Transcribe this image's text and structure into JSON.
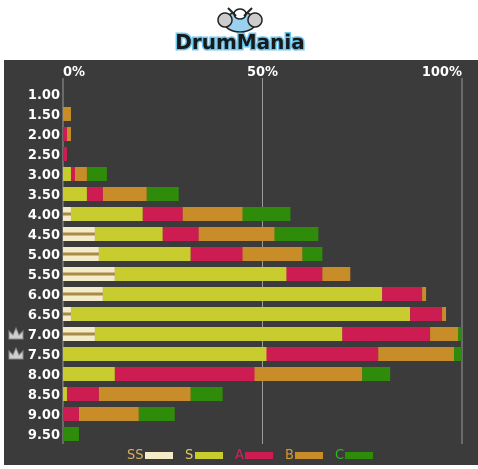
{
  "header": {
    "logo_text": "DrumMania"
  },
  "chart_data": {
    "type": "bar",
    "stacked": true,
    "orientation": "horizontal",
    "xlim": [
      0,
      100
    ],
    "x_tick_labels": [
      "0%",
      "50%",
      "100%"
    ],
    "categories": [
      "1.00",
      "1.50",
      "2.00",
      "2.50",
      "3.00",
      "3.50",
      "4.00",
      "4.50",
      "5.00",
      "5.50",
      "6.00",
      "6.50",
      "7.00",
      "7.50",
      "8.00",
      "8.50",
      "9.00",
      "9.50"
    ],
    "crowned_categories": [
      "7.00",
      "7.50"
    ],
    "series": [
      {
        "name": "SS",
        "color": "#f4ecc8",
        "values": [
          0,
          0,
          0,
          0,
          0,
          0,
          2,
          8,
          9,
          13,
          10,
          2,
          8,
          0,
          0,
          0,
          0,
          0
        ]
      },
      {
        "name": "S",
        "color": "#c8cc2e",
        "values": [
          0,
          0,
          0,
          0,
          2,
          6,
          18,
          17,
          23,
          43,
          70,
          85,
          62,
          51,
          13,
          1,
          0,
          0
        ]
      },
      {
        "name": "A",
        "color": "#cc1c52",
        "values": [
          0,
          0,
          1,
          1,
          1,
          4,
          10,
          9,
          13,
          9,
          10,
          8,
          22,
          28,
          35,
          8,
          4,
          0
        ]
      },
      {
        "name": "B",
        "color": "#c88c28",
        "values": [
          0,
          2,
          1,
          0,
          3,
          11,
          15,
          19,
          15,
          7,
          1,
          1,
          7,
          19,
          27,
          23,
          15,
          0
        ]
      },
      {
        "name": "C",
        "color": "#2e8c0a",
        "values": [
          0,
          0,
          0,
          0,
          5,
          8,
          12,
          11,
          5,
          0,
          0,
          0,
          1,
          2,
          7,
          8,
          9,
          4
        ]
      }
    ],
    "legend": {
      "position": "bottom",
      "labels": [
        "SS",
        "S",
        "A",
        "B",
        "C"
      ]
    },
    "grid": true
  },
  "colors": {
    "panel_bg": "#3a3b3a",
    "label_text": "#ffffff",
    "gridline": "#9a9a9a",
    "legend_text": [
      "#d8b060",
      "#e0c860",
      "#d82060",
      "#d89a30",
      "#30b820"
    ]
  }
}
